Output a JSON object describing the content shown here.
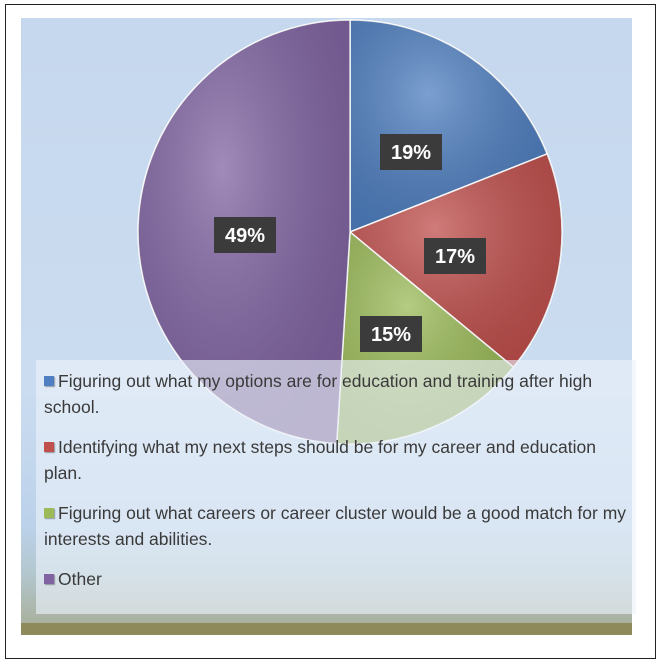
{
  "chart_data": {
    "type": "pie",
    "title": "",
    "slices": [
      {
        "label": "Figuring out what my options are for education and training after high school.",
        "value": 19,
        "value_label": "19%",
        "color": "#4f7fc0"
      },
      {
        "label": "Identifying what my next steps should be for my career and education plan.",
        "value": 17,
        "value_label": "17%",
        "color": "#c0504d"
      },
      {
        "label": "Figuring out what careers or career cluster would be a good match for my interests and abilities.",
        "value": 15,
        "value_label": "15%",
        "color": "#9bbb59"
      },
      {
        "label": "Other",
        "value": 49,
        "value_label": "49%",
        "color": "#8064a2"
      }
    ],
    "legend_position": "bottom-overlay"
  }
}
